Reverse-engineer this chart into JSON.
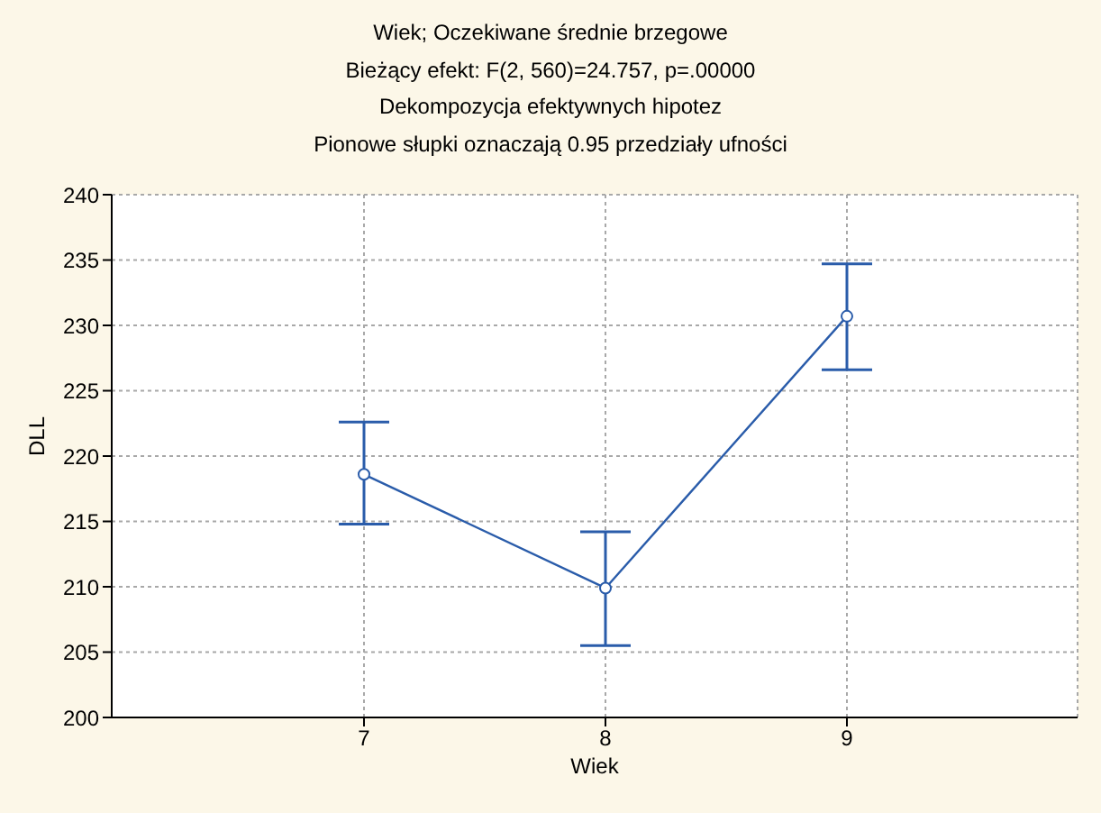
{
  "chart_data": {
    "type": "line",
    "title": "Wiek; Oczekiwane średnie brzegowe",
    "subtitle": "Bieżący efekt: F(2, 560)=24.757, p=.00000",
    "annotations": [
      "Dekompozycja efektywnych hipotez",
      "Pionowe słupki oznaczają 0.95 przedziały ufności"
    ],
    "xlabel": "Wiek",
    "ylabel": "DLL",
    "categories": [
      "7",
      "8",
      "9"
    ],
    "series": [
      {
        "color": "#2a5caa",
        "values": [
          218.6,
          209.9,
          230.7
        ],
        "errors": [
          [
            214.8,
            222.6
          ],
          [
            205.5,
            214.2
          ],
          [
            226.6,
            234.7
          ]
        ]
      }
    ],
    "ylim": [
      200,
      240
    ],
    "yticks": [
      200,
      205,
      210,
      215,
      220,
      225,
      230,
      235,
      240
    ],
    "grid": true,
    "marker": "circle",
    "line_style": "solid"
  }
}
